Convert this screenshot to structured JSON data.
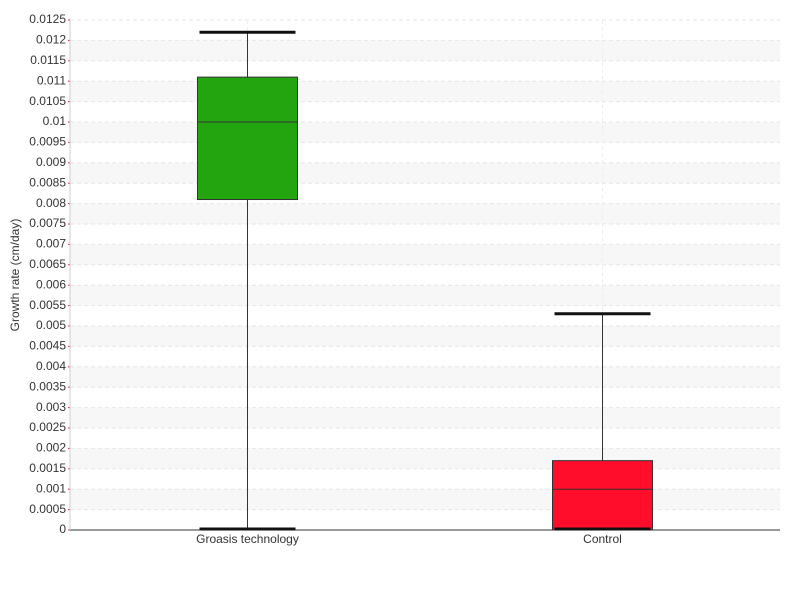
{
  "chart_data": {
    "type": "box",
    "y_label": "Growth rate (cm/day)",
    "categories": [
      "Groasis technology",
      "Control"
    ],
    "colors": [
      "#22a50f",
      "#ff0d2b"
    ],
    "min": [
      0,
      0
    ],
    "q1": [
      0.0081,
      0
    ],
    "median": [
      0.01,
      0.001
    ],
    "q3": [
      0.0111,
      0.0017
    ],
    "max": [
      0.0122,
      0.0053
    ],
    "ylim": [
      0,
      0.0125
    ],
    "yticks": [
      0,
      0.0005,
      0.001,
      0.0015,
      0.002,
      0.0025,
      0.003,
      0.0035,
      0.004,
      0.0045,
      0.005,
      0.0055,
      0.006,
      0.0065,
      0.007,
      0.0075,
      0.008,
      0.0085,
      0.009,
      0.0095,
      0.01,
      0.0105,
      0.011,
      0.0115,
      0.012,
      0.0125
    ],
    "grid": true
  }
}
